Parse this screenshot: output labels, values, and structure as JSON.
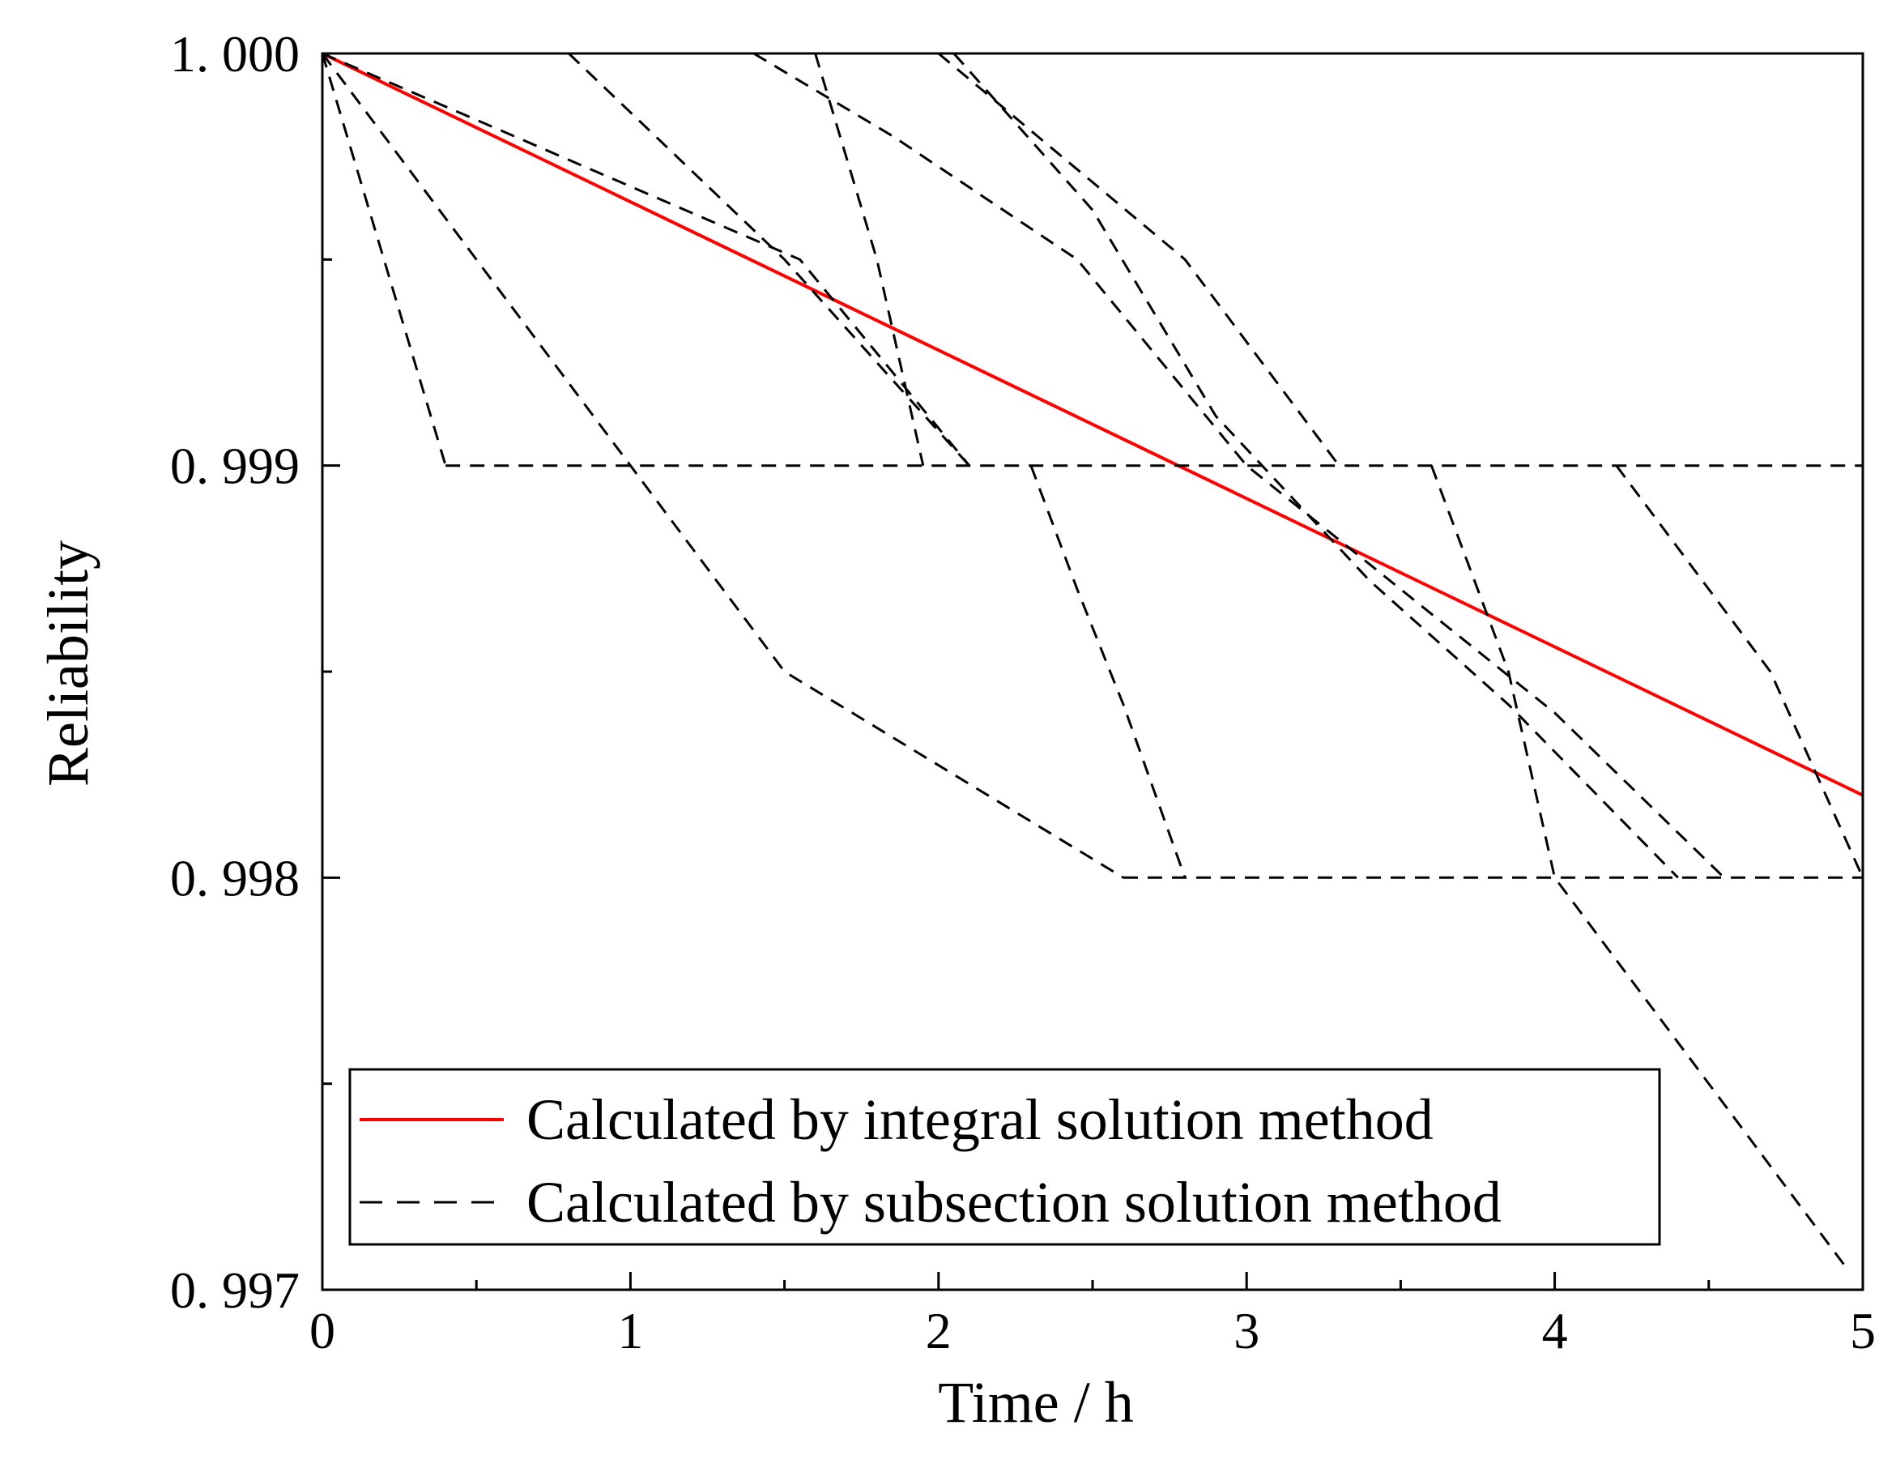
{
  "chart_data": {
    "type": "line",
    "title": "",
    "xlabel": "Time / h",
    "ylabel": "Reliability",
    "xlim": [
      0,
      5
    ],
    "ylim": [
      0.997,
      1.0
    ],
    "x_ticks": [
      {
        "value": 0,
        "label": "0"
      },
      {
        "value": 1,
        "label": "1"
      },
      {
        "value": 2,
        "label": "2"
      },
      {
        "value": 3,
        "label": "3"
      },
      {
        "value": 4,
        "label": "4"
      },
      {
        "value": 5,
        "label": "5"
      }
    ],
    "x_minor_ticks": [
      0.5,
      1.5,
      2.5,
      3.5,
      4.5
    ],
    "y_ticks": [
      {
        "value": 0.997,
        "label": "0. 997"
      },
      {
        "value": 0.998,
        "label": "0. 998"
      },
      {
        "value": 0.999,
        "label": "0. 999"
      },
      {
        "value": 1.0,
        "label": "1. 000"
      }
    ],
    "y_minor_ticks": [
      0.9975,
      0.9985,
      0.9995
    ],
    "grid": false,
    "legend_position": "bottom-center",
    "series": [
      {
        "name": "Calculated by integral solution method",
        "style": "solid",
        "color": "#ff0000",
        "x": [
          0,
          5
        ],
        "y": [
          1.0,
          0.9982
        ]
      },
      {
        "name": "Calculated by subsection solution method",
        "style": "dashed",
        "color": "#000000",
        "segments": [
          {
            "x": [
              0,
              2.0
            ],
            "y": [
              1.0,
              1.0
            ]
          },
          {
            "x": [
              0,
              0.4
            ],
            "y": [
              1.0,
              0.999
            ]
          },
          {
            "x": [
              0.4,
              5
            ],
            "y": [
              0.999,
              0.999
            ]
          },
          {
            "x": [
              0,
              1.5,
              2.6
            ],
            "y": [
              1.0,
              0.9985,
              0.998
            ]
          },
          {
            "x": [
              2.6,
              5
            ],
            "y": [
              0.998,
              0.998
            ]
          },
          {
            "x": [
              0,
              1.55,
              2.1
            ],
            "y": [
              1.0,
              0.9995,
              0.999
            ]
          },
          {
            "x": [
              0.8,
              1.5,
              2.1
            ],
            "y": [
              1.0,
              0.9995,
              0.999
            ]
          },
          {
            "x": [
              1.4,
              1.85,
              2.45,
              3.0,
              3.5,
              4.0,
              4.55
            ],
            "y": [
              1.0,
              0.9998,
              0.9995,
              0.999,
              0.9987,
              0.9984,
              0.998
            ]
          },
          {
            "x": [
              1.6,
              1.7,
              1.8,
              1.95
            ],
            "y": [
              1.0,
              0.99975,
              0.9995,
              0.999
            ]
          },
          {
            "x": [
              2.0,
              2.8,
              3.3
            ],
            "y": [
              1.0,
              0.9995,
              0.999
            ]
          },
          {
            "x": [
              2.05,
              2.5,
              2.9,
              3.4,
              3.85,
              4.4
            ],
            "y": [
              1.0,
              0.99962,
              0.99912,
              0.99872,
              0.99842,
              0.998
            ]
          },
          {
            "x": [
              2.3,
              2.45,
              2.6,
              2.8
            ],
            "y": [
              0.999,
              0.9987,
              0.99842,
              0.998
            ]
          },
          {
            "x": [
              3.6,
              3.85,
              4.0,
              4.45,
              4.95
            ],
            "y": [
              0.999,
              0.9985,
              0.998,
              0.99755,
              0.99705
            ]
          },
          {
            "x": [
              4.2,
              4.7,
              5.0
            ],
            "y": [
              0.999,
              0.9985,
              0.998
            ]
          }
        ]
      }
    ]
  }
}
